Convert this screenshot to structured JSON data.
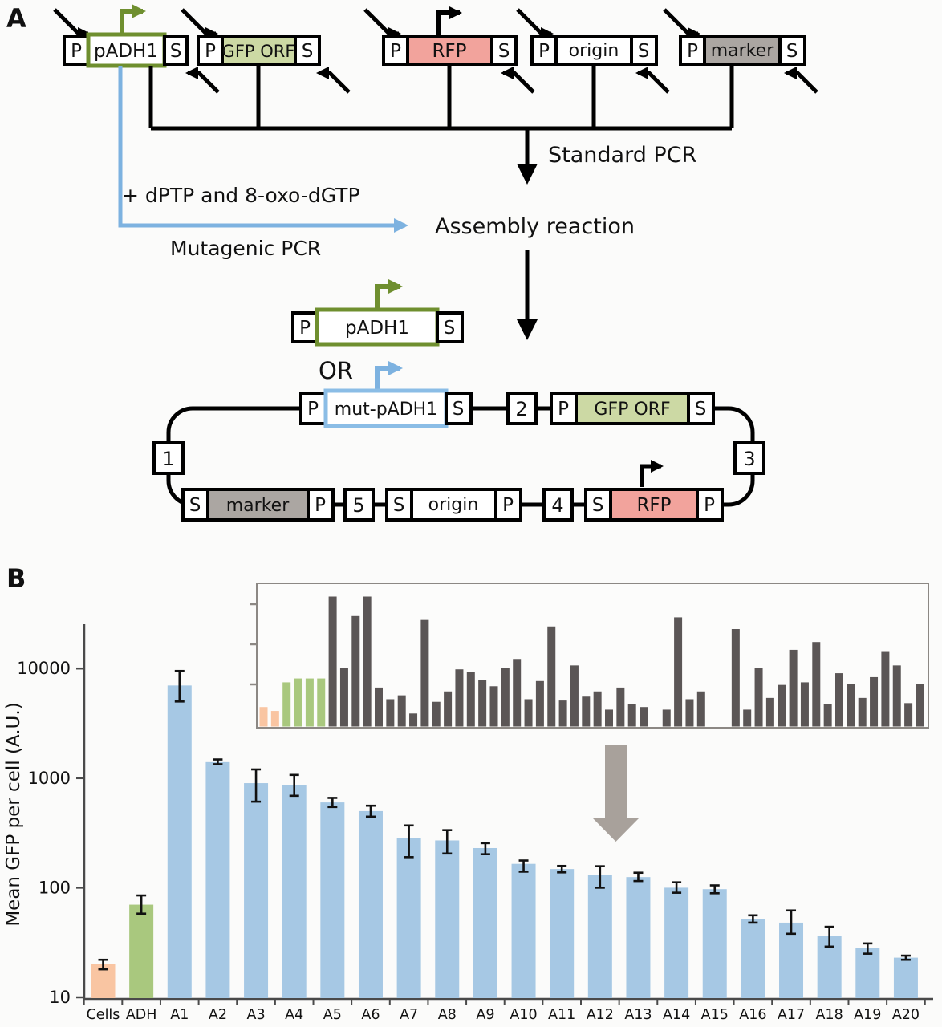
{
  "figure": {
    "panel_a": "A",
    "panel_b": "B"
  },
  "diagram": {
    "p": "P",
    "s": "S",
    "padh1": "pADH1",
    "gfp_orf": "GFP ORF",
    "rfp": "RFP",
    "origin": "origin",
    "marker": "marker",
    "mut_padh1": "mut-pADH1",
    "standard_pcr": "Standard PCR",
    "assembly_reaction": "Assembly reaction",
    "additives": "+ dPTP and 8-oxo-dGTP",
    "mutagenic_pcr": "Mutagenic PCR",
    "or": "OR",
    "n1": "1",
    "n2": "2",
    "n3": "3",
    "n4": "4",
    "n5": "5",
    "colors": {
      "green_stroke": "#6f8f2f",
      "green_fill": "#ccd9a4",
      "red_fill": "#f2a39c",
      "gray_fill": "#aba6a2",
      "blue_stroke": "#7db2e0",
      "black": "#000000"
    }
  },
  "chart_data": {
    "type": "bar",
    "ylabel": "Mean GFP per cell (A.U.)",
    "yscale": "log",
    "ylim": [
      10,
      30000
    ],
    "yticks": [
      10,
      100,
      1000,
      10000
    ],
    "grid": false,
    "legend": "none",
    "categories": [
      "Cells",
      "ADH",
      "A1",
      "A2",
      "A3",
      "A4",
      "A5",
      "A6",
      "A7",
      "A8",
      "A9",
      "A10",
      "A11",
      "A12",
      "A13",
      "A14",
      "A15",
      "A16",
      "A17",
      "A18",
      "A19",
      "A20"
    ],
    "values": [
      20,
      70,
      7000,
      1400,
      900,
      870,
      600,
      500,
      285,
      270,
      230,
      165,
      148,
      130,
      125,
      100,
      97,
      52,
      48,
      36,
      28,
      23
    ],
    "err_hi": [
      2,
      15,
      2500,
      80,
      300,
      200,
      60,
      60,
      85,
      65,
      25,
      12,
      10,
      27,
      12,
      12,
      8,
      4,
      14,
      8,
      3,
      1
    ],
    "err_lo": [
      2,
      12,
      2000,
      60,
      290,
      180,
      55,
      55,
      95,
      65,
      28,
      25,
      10,
      30,
      10,
      10,
      8,
      4,
      10,
      7,
      3,
      1
    ],
    "bar_colors": {
      "cells": "#f9c5a2",
      "adh": "#a9c87e",
      "mutants": "#a6c8e4"
    },
    "error_color": "#111111",
    "inset": {
      "type": "bar",
      "yscale": "linear",
      "tick_count_unlabeled": 3,
      "values_pct": [
        15,
        12,
        34,
        37,
        37,
        37,
        100,
        45,
        85,
        100,
        30,
        21,
        24,
        10,
        82,
        19,
        27,
        44,
        42,
        36,
        31,
        45,
        52,
        21,
        35,
        77,
        20,
        47,
        23,
        27,
        13,
        30,
        17,
        15,
        0,
        13,
        84,
        21,
        27,
        0,
        0,
        75,
        13,
        45,
        22,
        32,
        59,
        34,
        65,
        17,
        41,
        33,
        22,
        38,
        58,
        47,
        18,
        33
      ],
      "color_groups": [
        {
          "count": 2,
          "color": "#f9c5a2"
        },
        {
          "count": 4,
          "color": "#a9c87e"
        },
        {
          "count": 52,
          "color": "#5b5656"
        }
      ],
      "arrow_color": "#a8a19b"
    }
  }
}
